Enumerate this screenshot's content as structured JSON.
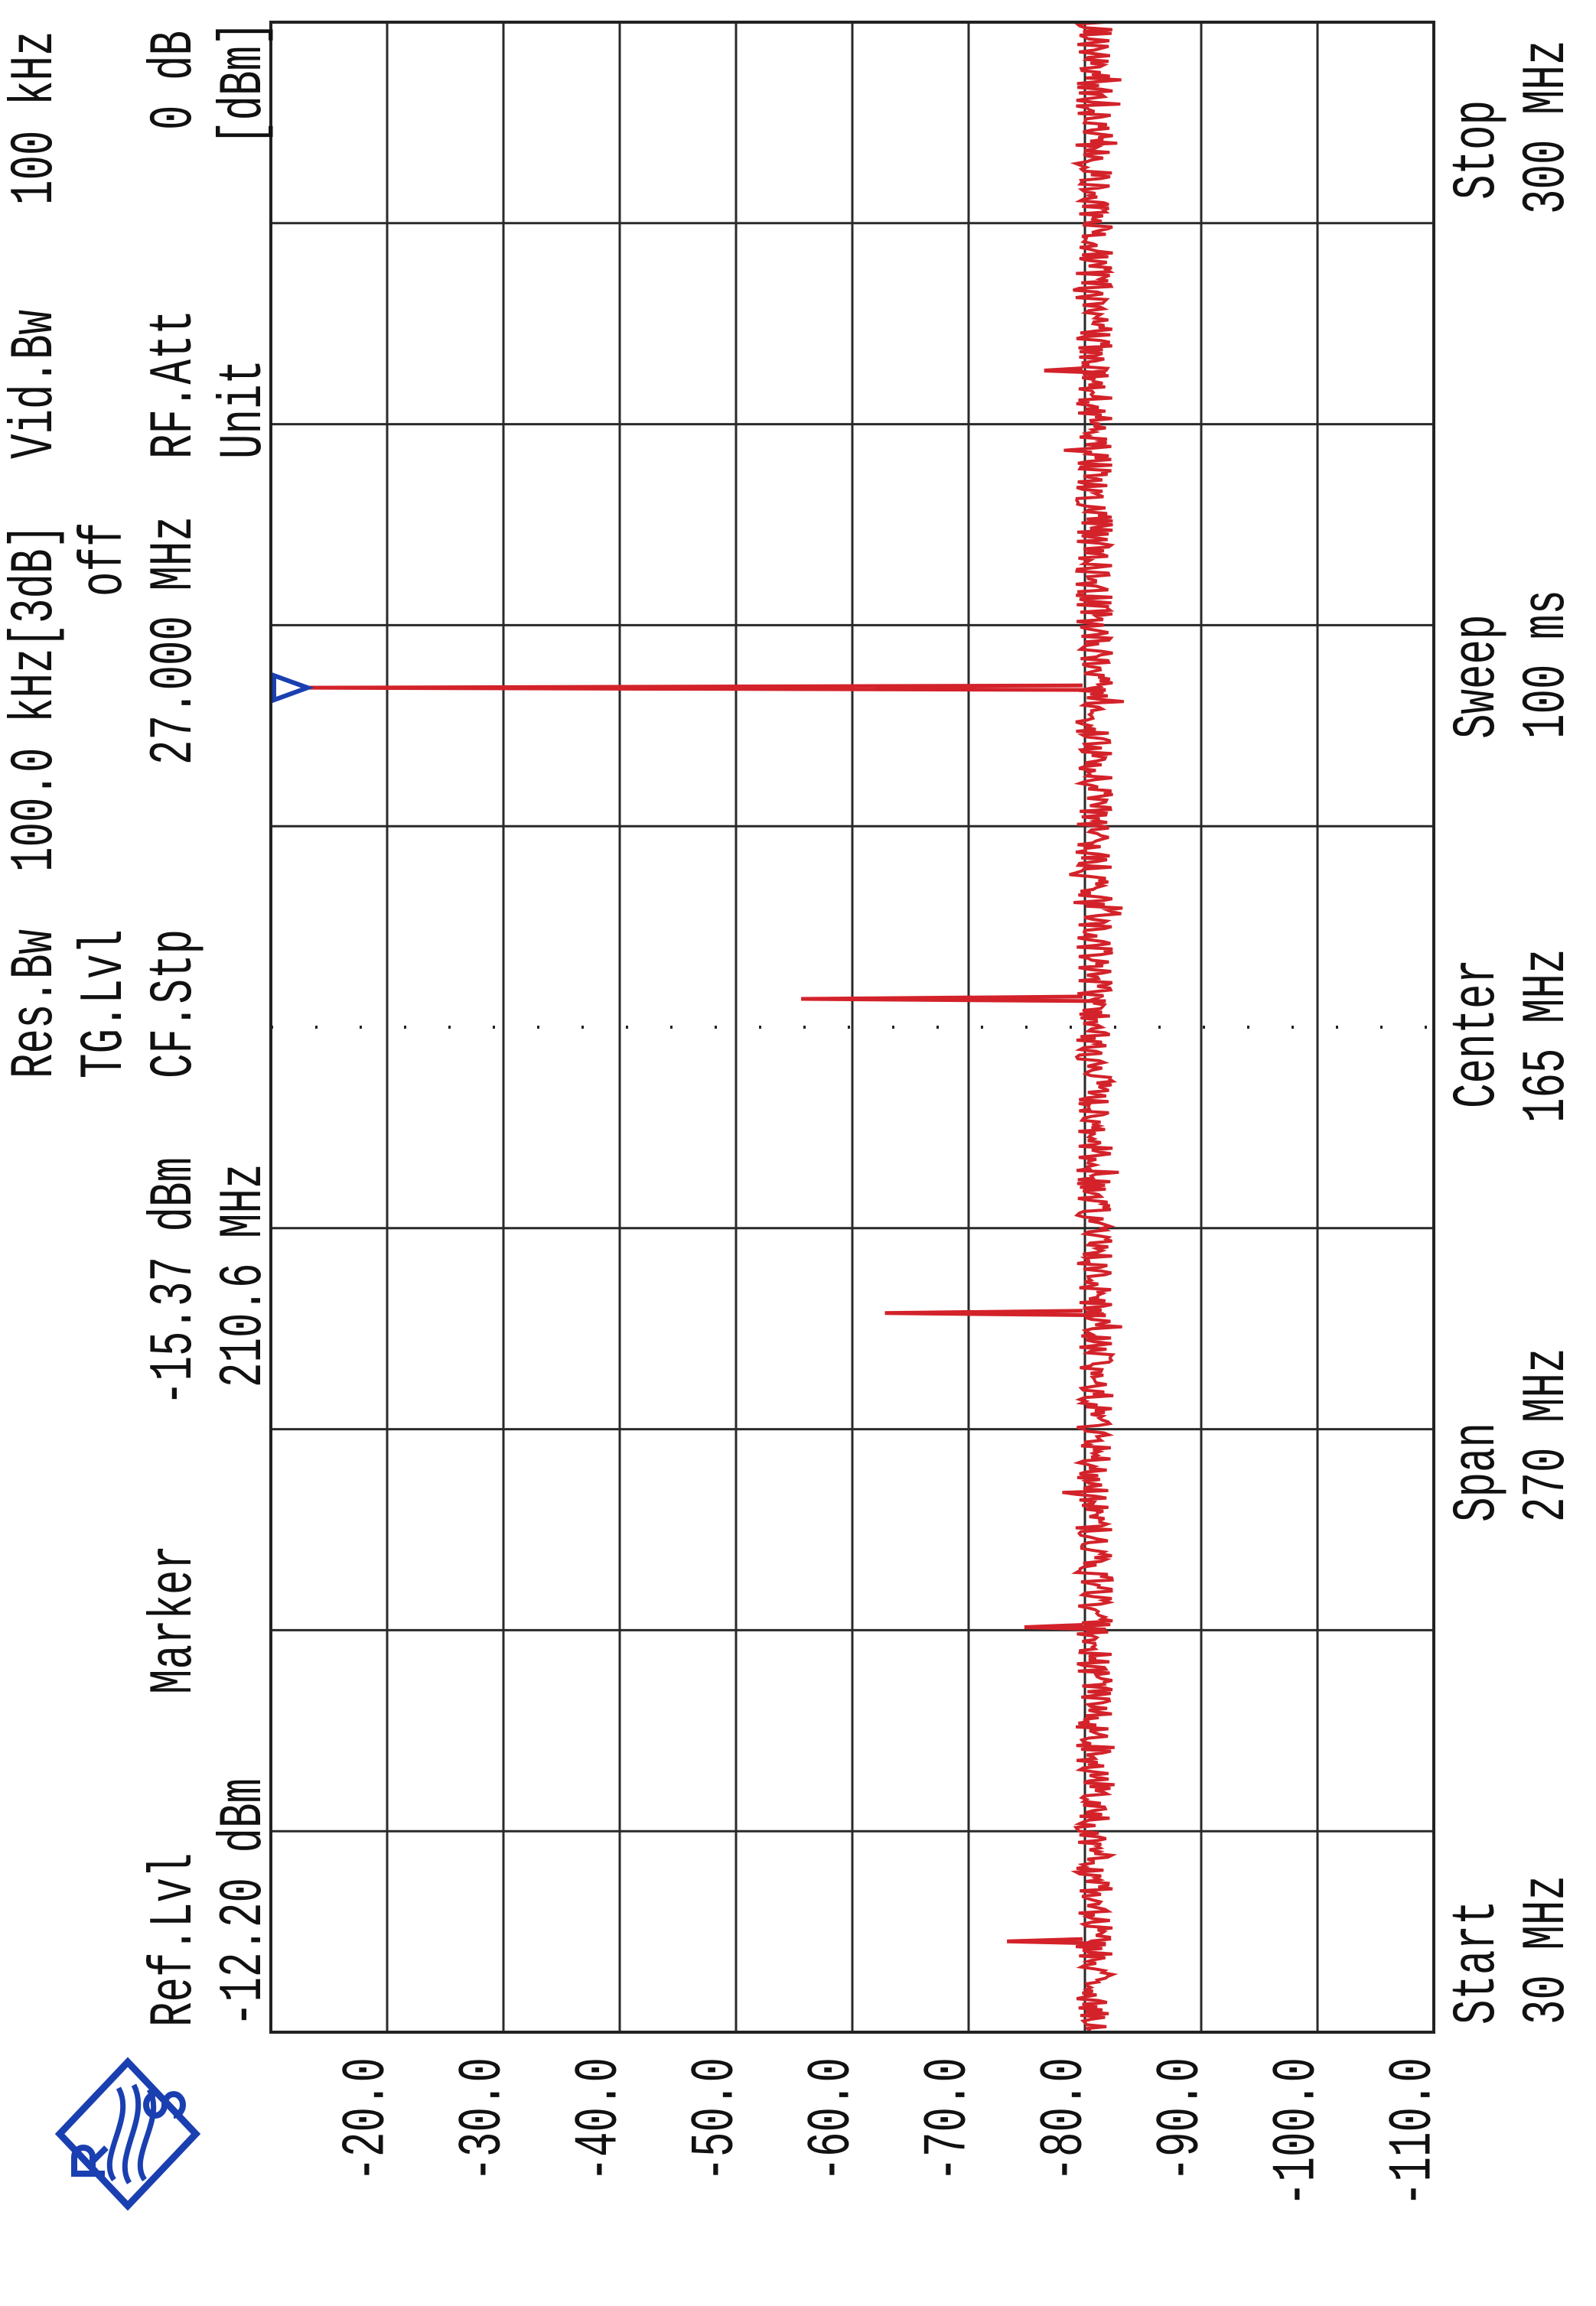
{
  "header": {
    "res_bw_label": "Res.Bw",
    "res_bw_value": "100.0 kHz[3dB]",
    "vid_bw_label": "Vid.Bw",
    "vid_bw_value": "100 kHz",
    "tg_lvl_label": "TG.Lvl",
    "tg_lvl_value": "off",
    "cf_stp_label": "CF.Stp",
    "cf_stp_value": "27.000 MHz",
    "rf_att_label": "RF.Att",
    "rf_att_value": "0 dB",
    "unit_label": "Unit",
    "unit_value": "[dBm]",
    "ref_lvl_label": "Ref.Lvl",
    "ref_lvl_value": "-12.20 dBm",
    "marker_label": "Marker",
    "marker_level": "-15.37 dBm",
    "marker_freq": "210.6 MHz"
  },
  "footer": {
    "start_label": "Start",
    "start_value": "30 MHz",
    "span_label": "Span",
    "span_value": "270 MHz",
    "center_label": "Center",
    "center_value": "165 MHz",
    "sweep_label": "Sweep",
    "sweep_value": "100 ms",
    "stop_label": "Stop",
    "stop_value": "300 MHz"
  },
  "logo": {
    "text": "R&S",
    "color": "#1a3fb0"
  },
  "colors": {
    "trace": "#d3222a",
    "grid": "#2a2a2a",
    "marker": "#1a3fb0"
  },
  "chart_data": {
    "type": "line",
    "title": "",
    "xlabel": "",
    "ylabel": "",
    "x_unit": "MHz",
    "y_unit": "dBm",
    "xlim": [
      30,
      300
    ],
    "ylim": [
      -112.2,
      -12.2
    ],
    "x_orientation": "vertical (rotated printout, start at bottom)",
    "grid": true,
    "y_ticks": [
      "-20.0",
      "-30.0",
      "-40.0",
      "-50.0",
      "-60.0",
      "-70.0",
      "-80.0",
      "-90.0",
      "-100.0",
      "-110.0"
    ],
    "y_tick_values": [
      -20,
      -30,
      -40,
      -50,
      -60,
      -70,
      -80,
      -90,
      -100,
      -110
    ],
    "noise_floor_dbm": -83,
    "peaks": [
      {
        "freq": 42.2,
        "level": -75.5
      },
      {
        "freq": 84.4,
        "level": -77.0
      },
      {
        "freq": 126.6,
        "level": -65.0
      },
      {
        "freq": 168.8,
        "level": -57.8
      },
      {
        "freq": 210.6,
        "level": -15.37
      },
      {
        "freq": 253.2,
        "level": -78.7
      }
    ],
    "marker": {
      "freq": 210.6,
      "level": -15.37
    }
  }
}
